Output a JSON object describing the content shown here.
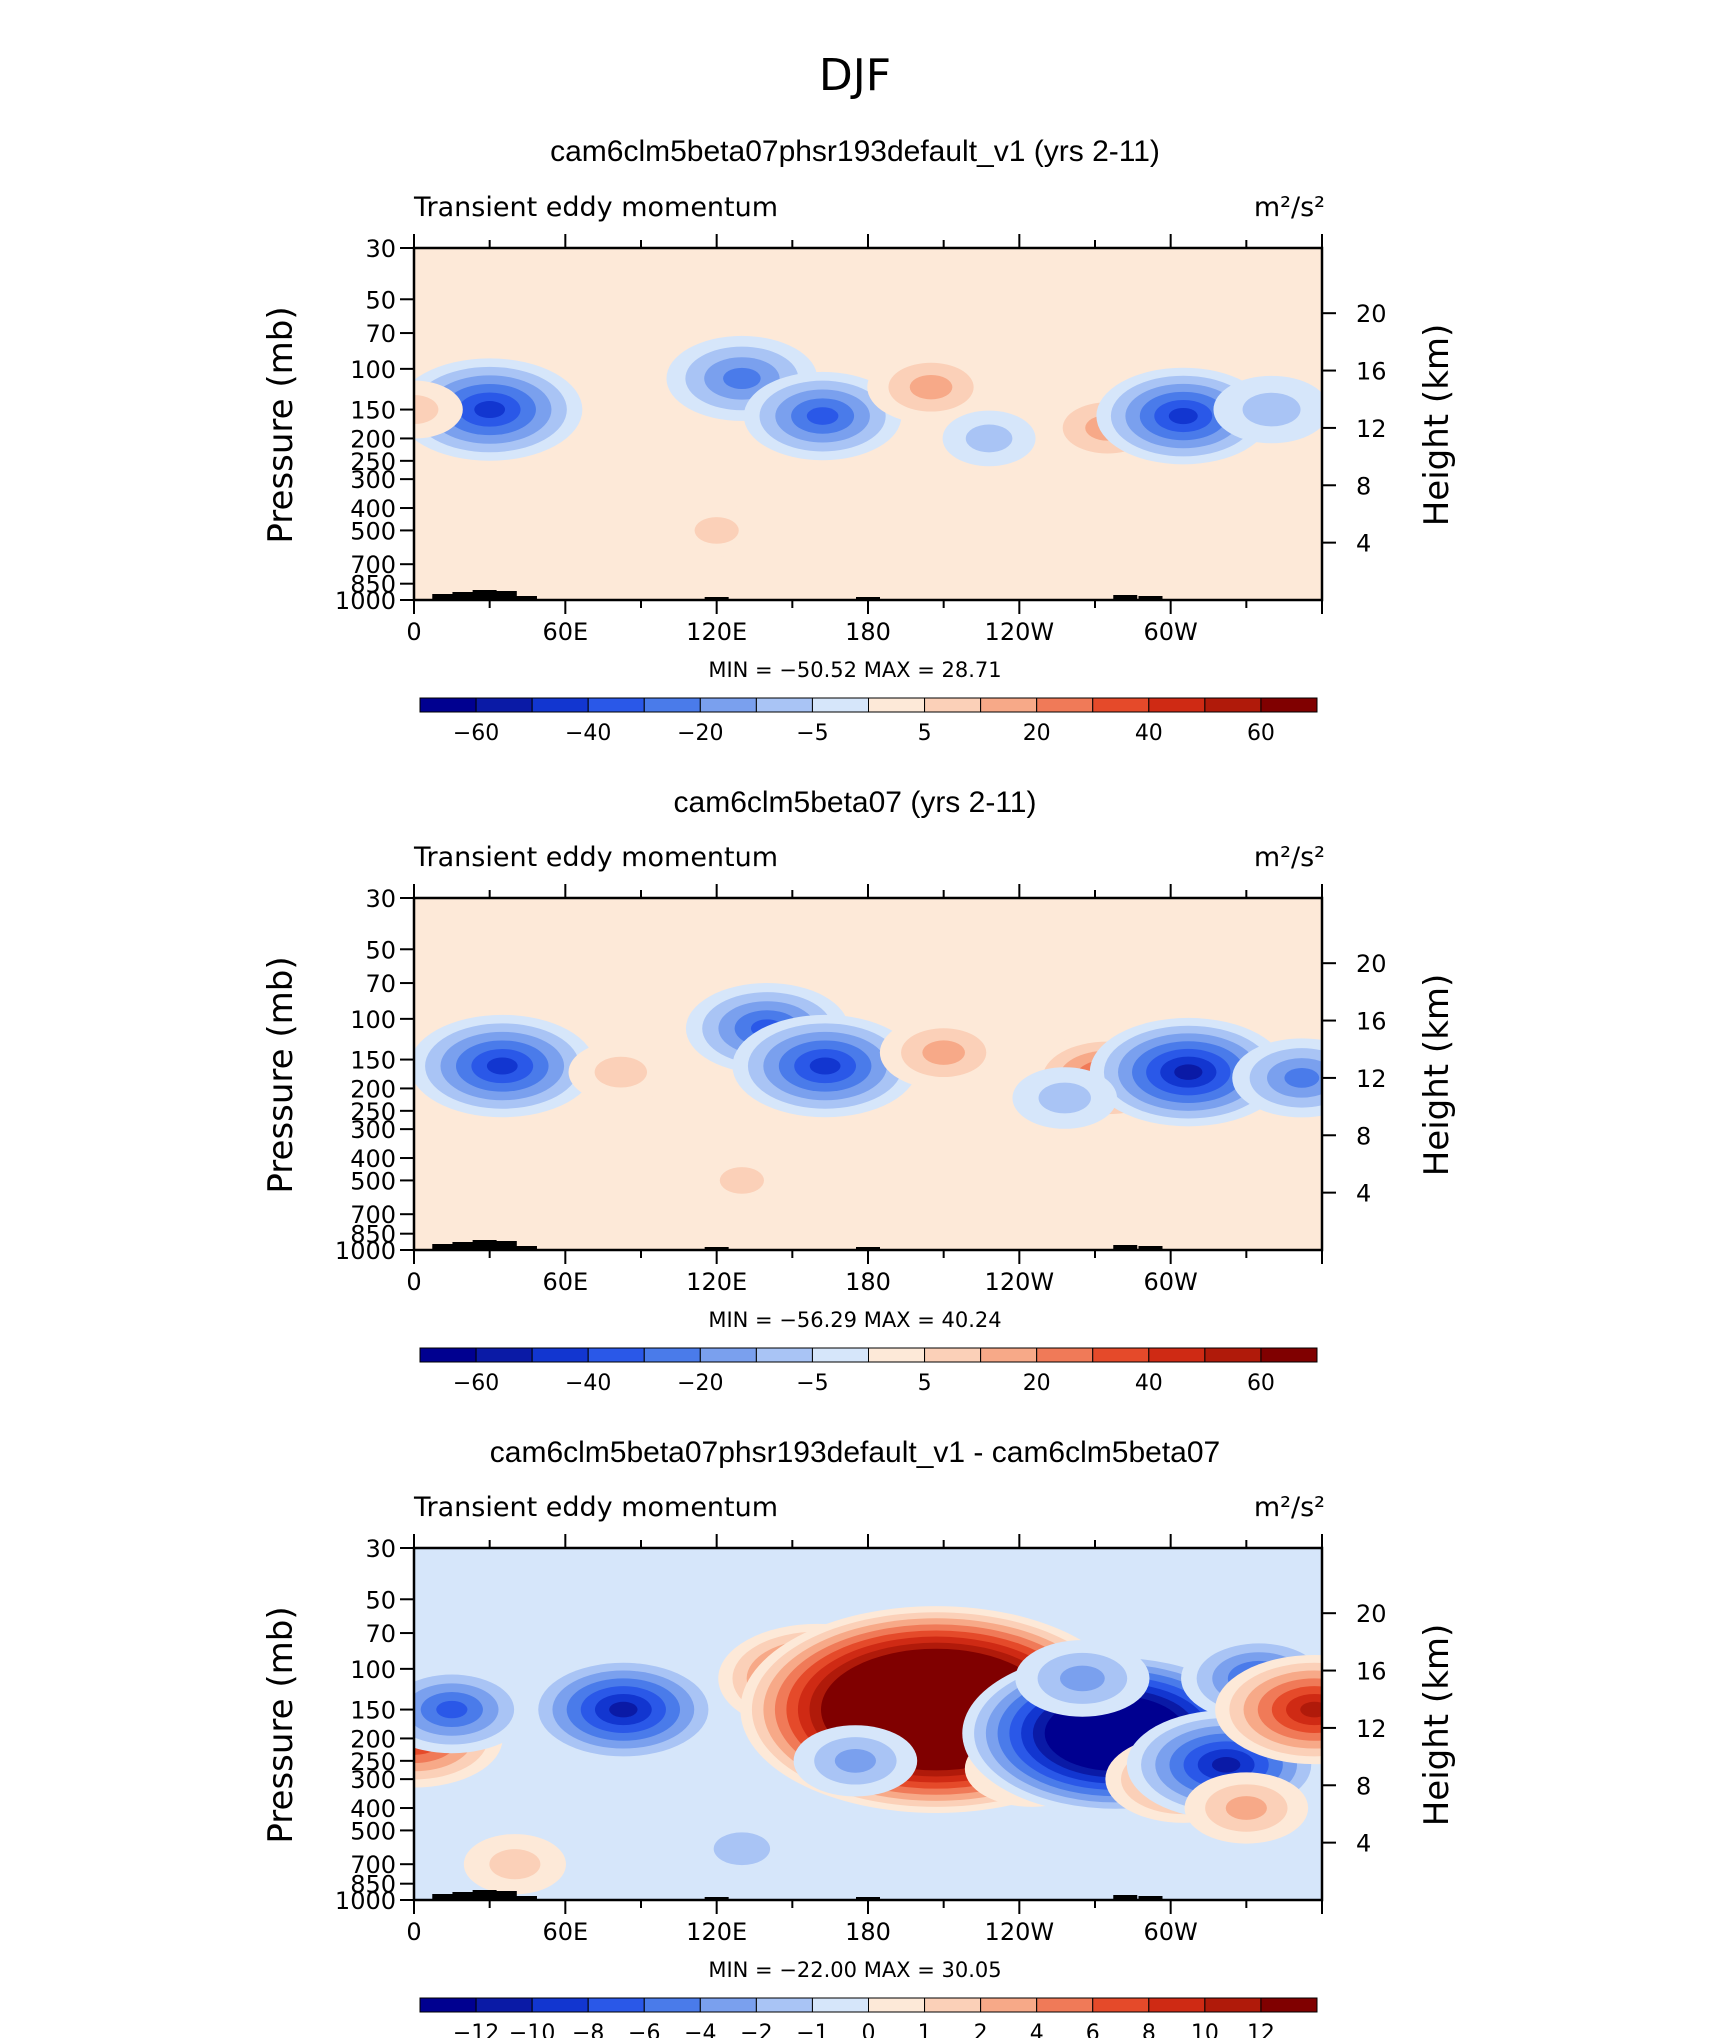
{
  "figure_title": "DJF",
  "colors": {
    "neg": [
      "#000090",
      "#0a1aa6",
      "#1236d0",
      "#2a58e8",
      "#4a7bea",
      "#7aa0ee",
      "#a9c4f5",
      "#d6e6fa"
    ],
    "pos": [
      "#fde9d8",
      "#fbd0b8",
      "#f7a988",
      "#f07a58",
      "#e54a2a",
      "#cf2a14",
      "#b01a0a",
      "#800000"
    ]
  },
  "chart_data": [
    {
      "type": "heatmap",
      "title": "cam6clm5beta07phsr193default_v1 (yrs 2-11)",
      "left_label": "Transient eddy momentum",
      "right_label": "m²/s²",
      "ylabel": "Pressure (mb)",
      "ylabel_right": "Height (km)",
      "xlim": [
        0,
        360
      ],
      "ylim": [
        1000,
        30
      ],
      "x_ticks": [
        "0",
        "60E",
        "120E",
        "180",
        "120W",
        "60W"
      ],
      "y_ticks": [
        "30",
        "50",
        "70",
        "100",
        "150",
        "200",
        "250",
        "300",
        "400",
        "500",
        "700",
        "850",
        "1000"
      ],
      "height_ticks": [
        "20",
        "16",
        "12",
        "8",
        "4"
      ],
      "stats": "MIN = −50.52   MAX = 28.71",
      "colorbar_labels": [
        "−60",
        "−40",
        "−20",
        "−5",
        "5",
        "20",
        "40",
        "60"
      ],
      "features": [
        {
          "lon": 30,
          "p": 150,
          "value": -50
        },
        {
          "lon": 130,
          "p": 110,
          "value": -35
        },
        {
          "lon": 162,
          "p": 160,
          "value": -38
        },
        {
          "lon": 205,
          "p": 120,
          "value": 25
        },
        {
          "lon": 275,
          "p": 180,
          "value": 28
        },
        {
          "lon": 305,
          "p": 160,
          "value": -45
        },
        {
          "lon": 340,
          "p": 150,
          "value": -20
        },
        {
          "lon": 0,
          "p": 150,
          "value": 12
        },
        {
          "lon": 228,
          "p": 200,
          "value": -10
        },
        {
          "lon": 120,
          "p": 500,
          "value": 8
        }
      ]
    },
    {
      "type": "heatmap",
      "title": "cam6clm5beta07 (yrs 2-11)",
      "left_label": "Transient eddy momentum",
      "right_label": "m²/s²",
      "ylabel": "Pressure (mb)",
      "ylabel_right": "Height (km)",
      "xlim": [
        0,
        360
      ],
      "ylim": [
        1000,
        30
      ],
      "x_ticks": [
        "0",
        "60E",
        "120E",
        "180",
        "120W",
        "60W"
      ],
      "y_ticks": [
        "30",
        "50",
        "70",
        "100",
        "150",
        "200",
        "250",
        "300",
        "400",
        "500",
        "700",
        "850",
        "1000"
      ],
      "height_ticks": [
        "20",
        "16",
        "12",
        "8",
        "4"
      ],
      "stats": "MIN = −56.29   MAX = 40.24",
      "colorbar_labels": [
        "−60",
        "−40",
        "−20",
        "−5",
        "5",
        "20",
        "40",
        "60"
      ],
      "features": [
        {
          "lon": 35,
          "p": 160,
          "value": -50
        },
        {
          "lon": 140,
          "p": 110,
          "value": -40
        },
        {
          "lon": 163,
          "p": 160,
          "value": -50
        },
        {
          "lon": 210,
          "p": 140,
          "value": 25
        },
        {
          "lon": 275,
          "p": 180,
          "value": 40
        },
        {
          "lon": 307,
          "p": 170,
          "value": -55
        },
        {
          "lon": 352,
          "p": 180,
          "value": -30
        },
        {
          "lon": 82,
          "p": 170,
          "value": 15
        },
        {
          "lon": 258,
          "p": 220,
          "value": -15
        },
        {
          "lon": 130,
          "p": 500,
          "value": 8
        }
      ]
    },
    {
      "type": "heatmap",
      "title": "cam6clm5beta07phsr193default_v1 - cam6clm5beta07",
      "left_label": "Transient eddy momentum",
      "right_label": "m²/s²",
      "ylabel": "Pressure (mb)",
      "ylabel_right": "Height (km)",
      "xlim": [
        0,
        360
      ],
      "ylim": [
        1000,
        30
      ],
      "x_ticks": [
        "0",
        "60E",
        "120E",
        "180",
        "120W",
        "60W"
      ],
      "y_ticks": [
        "30",
        "50",
        "70",
        "100",
        "150",
        "200",
        "250",
        "300",
        "400",
        "500",
        "700",
        "850",
        "1000"
      ],
      "height_ticks": [
        "20",
        "16",
        "12",
        "8",
        "4"
      ],
      "stats": "MIN = −22.00   MAX = 30.05",
      "colorbar_labels": [
        "−12",
        "−10",
        "−8",
        "−6",
        "−4",
        "−2",
        "−1",
        "0",
        "1",
        "2",
        "4",
        "6",
        "8",
        "10",
        "12"
      ],
      "features": [
        {
          "lon": 0,
          "p": 200,
          "value": 10
        },
        {
          "lon": 15,
          "p": 150,
          "value": -8
        },
        {
          "lon": 83,
          "p": 150,
          "value": -12
        },
        {
          "lon": 160,
          "p": 110,
          "value": 12
        },
        {
          "lon": 207,
          "p": 150,
          "value": 30
        },
        {
          "lon": 245,
          "p": 270,
          "value": 6
        },
        {
          "lon": 278,
          "p": 190,
          "value": -22
        },
        {
          "lon": 305,
          "p": 300,
          "value": 8
        },
        {
          "lon": 322,
          "p": 260,
          "value": -12
        },
        {
          "lon": 335,
          "p": 110,
          "value": -8
        },
        {
          "lon": 357,
          "p": 150,
          "value": 12
        },
        {
          "lon": 175,
          "p": 250,
          "value": -5
        },
        {
          "lon": 130,
          "p": 600,
          "value": -4
        },
        {
          "lon": 40,
          "p": 700,
          "value": 3
        },
        {
          "lon": 265,
          "p": 110,
          "value": -6
        },
        {
          "lon": 330,
          "p": 400,
          "value": 5
        }
      ]
    }
  ]
}
